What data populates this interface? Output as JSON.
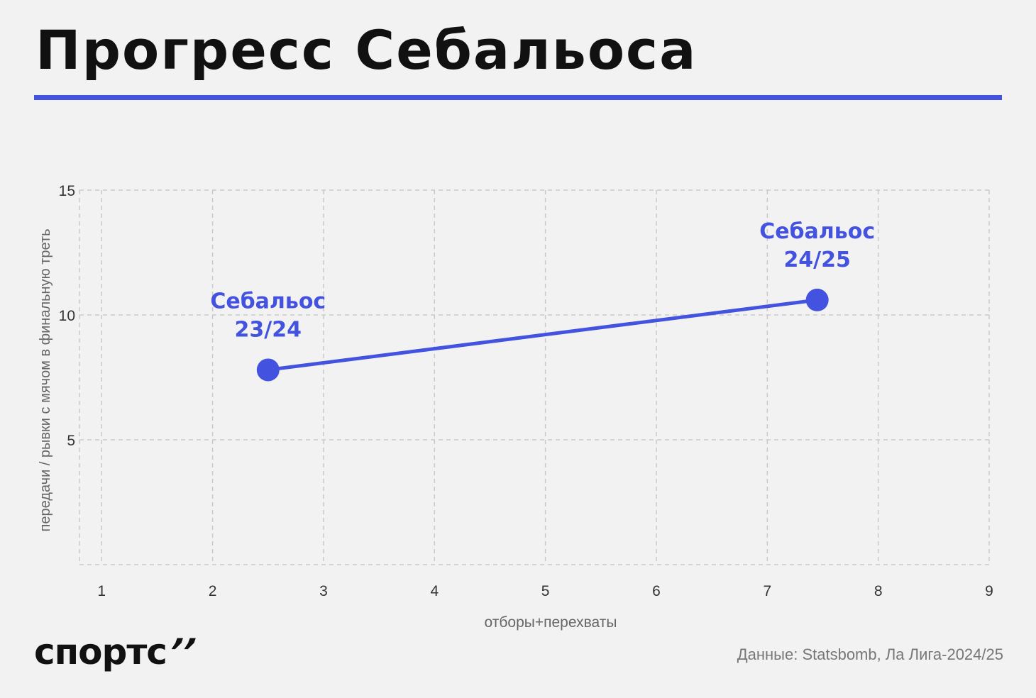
{
  "header": {
    "title": "Прогресс Себальоса"
  },
  "footer": {
    "brand": "спортс",
    "brand_mark": "’’",
    "source": "Данные: Statsbomb, Ла Лига-2024/25"
  },
  "colors": {
    "accent": "#4353e0",
    "grid": "#c9c9c9",
    "axis_text": "#333333",
    "label_text": "#666666"
  },
  "chart_data": {
    "type": "line",
    "xlabel": "отборы+перехваты",
    "ylabel": "передачи / рывки с мячом в финальную треть",
    "xlim": [
      0.8,
      9
    ],
    "ylim": [
      0,
      15
    ],
    "x_ticks": [
      1,
      2,
      3,
      4,
      5,
      6,
      7,
      8,
      9
    ],
    "y_ticks": [
      5,
      10,
      15
    ],
    "grid": true,
    "series": [
      {
        "points": [
          {
            "x": 2.5,
            "y": 7.8,
            "label": [
              "Себальос",
              "23/24"
            ]
          },
          {
            "x": 7.45,
            "y": 10.6,
            "label": [
              "Себальос",
              "24/25"
            ]
          }
        ]
      }
    ]
  }
}
